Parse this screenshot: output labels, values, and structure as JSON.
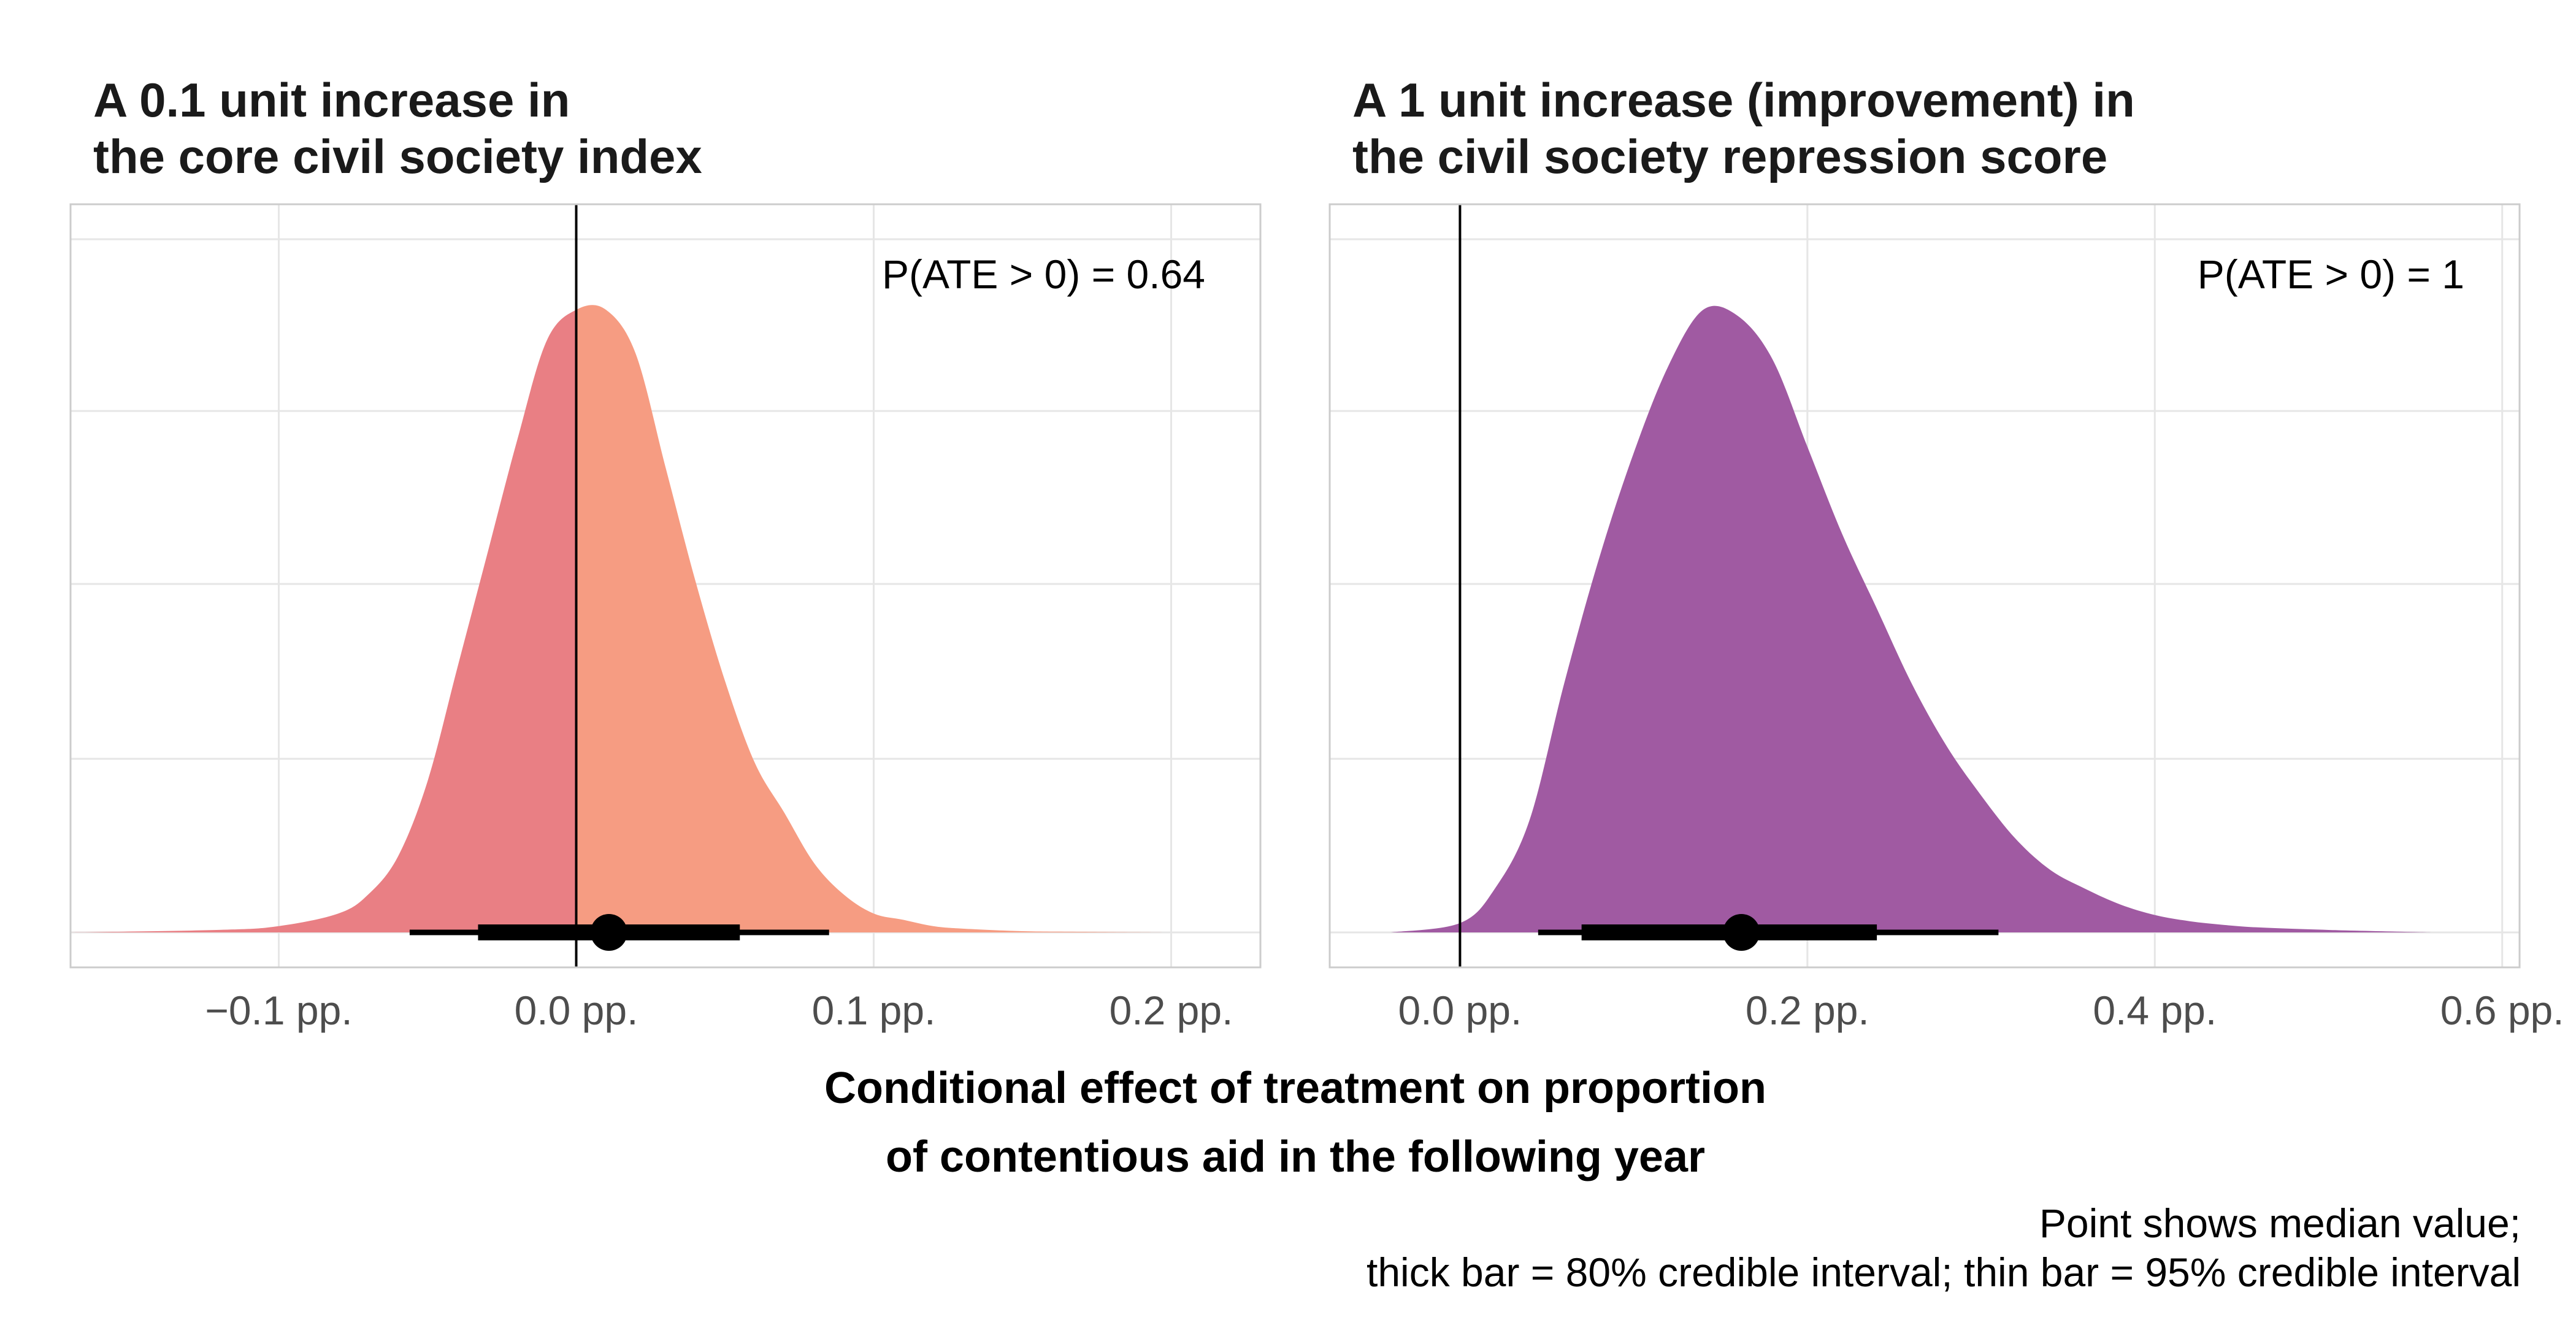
{
  "figure": {
    "xlabel_line1": "Conditional effect of treatment on proportion",
    "xlabel_line2": "of contentious aid in the following year",
    "caption_line1": "Point shows median value;",
    "caption_line2": "thick bar = 80% credible interval; thin bar = 95% credible interval"
  },
  "chart_data": [
    {
      "type": "area",
      "title": "A 0.1 unit increase in\nthe core civil society index",
      "title_lines": [
        "A 0.1 unit increase in",
        "the core civil society index"
      ],
      "annotation": "P(ATE > 0) = 0.64",
      "x_unit": "pp.",
      "xlim": [
        -0.17,
        0.23
      ],
      "x_ticks": [
        -0.1,
        0.0,
        0.1,
        0.2
      ],
      "x_tick_labels": [
        "−0.1 pp.",
        "0.0 pp.",
        "0.1 pp.",
        "0.2 pp."
      ],
      "reference_line_x": 0.0,
      "fill_below_zero": "#e97f84",
      "fill_above_zero": "#f69c82",
      "density": {
        "x": [
          -0.17,
          -0.12,
          -0.1,
          -0.08,
          -0.07,
          -0.06,
          -0.05,
          -0.04,
          -0.03,
          -0.02,
          -0.01,
          0.0,
          0.01,
          0.02,
          0.03,
          0.04,
          0.05,
          0.06,
          0.07,
          0.08,
          0.09,
          0.1,
          0.11,
          0.12,
          0.13,
          0.15,
          0.17,
          0.2
        ],
        "y": [
          0,
          0.004,
          0.01,
          0.03,
          0.06,
          0.12,
          0.24,
          0.42,
          0.6,
          0.78,
          0.94,
          0.99,
          0.99,
          0.92,
          0.74,
          0.56,
          0.4,
          0.27,
          0.19,
          0.11,
          0.06,
          0.03,
          0.02,
          0.01,
          0.006,
          0.002,
          0.001,
          0
        ]
      },
      "median": 0.011,
      "interval_80": [
        -0.033,
        0.055
      ],
      "interval_95": [
        -0.056,
        0.085
      ]
    },
    {
      "type": "area",
      "title": "A 1 unit increase (improvement) in\nthe civil society repression score",
      "title_lines": [
        "A 1 unit increase (improvement) in",
        "the civil society repression score"
      ],
      "annotation": "P(ATE > 0) = 1",
      "x_unit": "pp.",
      "xlim": [
        -0.075,
        0.61
      ],
      "x_ticks": [
        0.0,
        0.2,
        0.4,
        0.6
      ],
      "x_tick_labels": [
        "0.0 pp.",
        "0.2 pp.",
        "0.4 pp.",
        "0.6 pp."
      ],
      "reference_line_x": 0.0,
      "fill_color": "#a05aa2",
      "density": {
        "x": [
          -0.04,
          0.0,
          0.02,
          0.04,
          0.06,
          0.08,
          0.1,
          0.12,
          0.14,
          0.16,
          0.18,
          0.2,
          0.22,
          0.24,
          0.26,
          0.28,
          0.3,
          0.32,
          0.34,
          0.36,
          0.38,
          0.4,
          0.42,
          0.44,
          0.46,
          0.5,
          0.56
        ],
        "y": [
          0,
          0.015,
          0.07,
          0.18,
          0.4,
          0.6,
          0.77,
          0.91,
          1.0,
          0.99,
          0.92,
          0.78,
          0.64,
          0.52,
          0.4,
          0.3,
          0.22,
          0.15,
          0.1,
          0.07,
          0.045,
          0.028,
          0.018,
          0.012,
          0.008,
          0.004,
          0
        ]
      },
      "median": 0.162,
      "interval_80": [
        0.07,
        0.24
      ],
      "interval_95": [
        0.045,
        0.31
      ]
    }
  ]
}
